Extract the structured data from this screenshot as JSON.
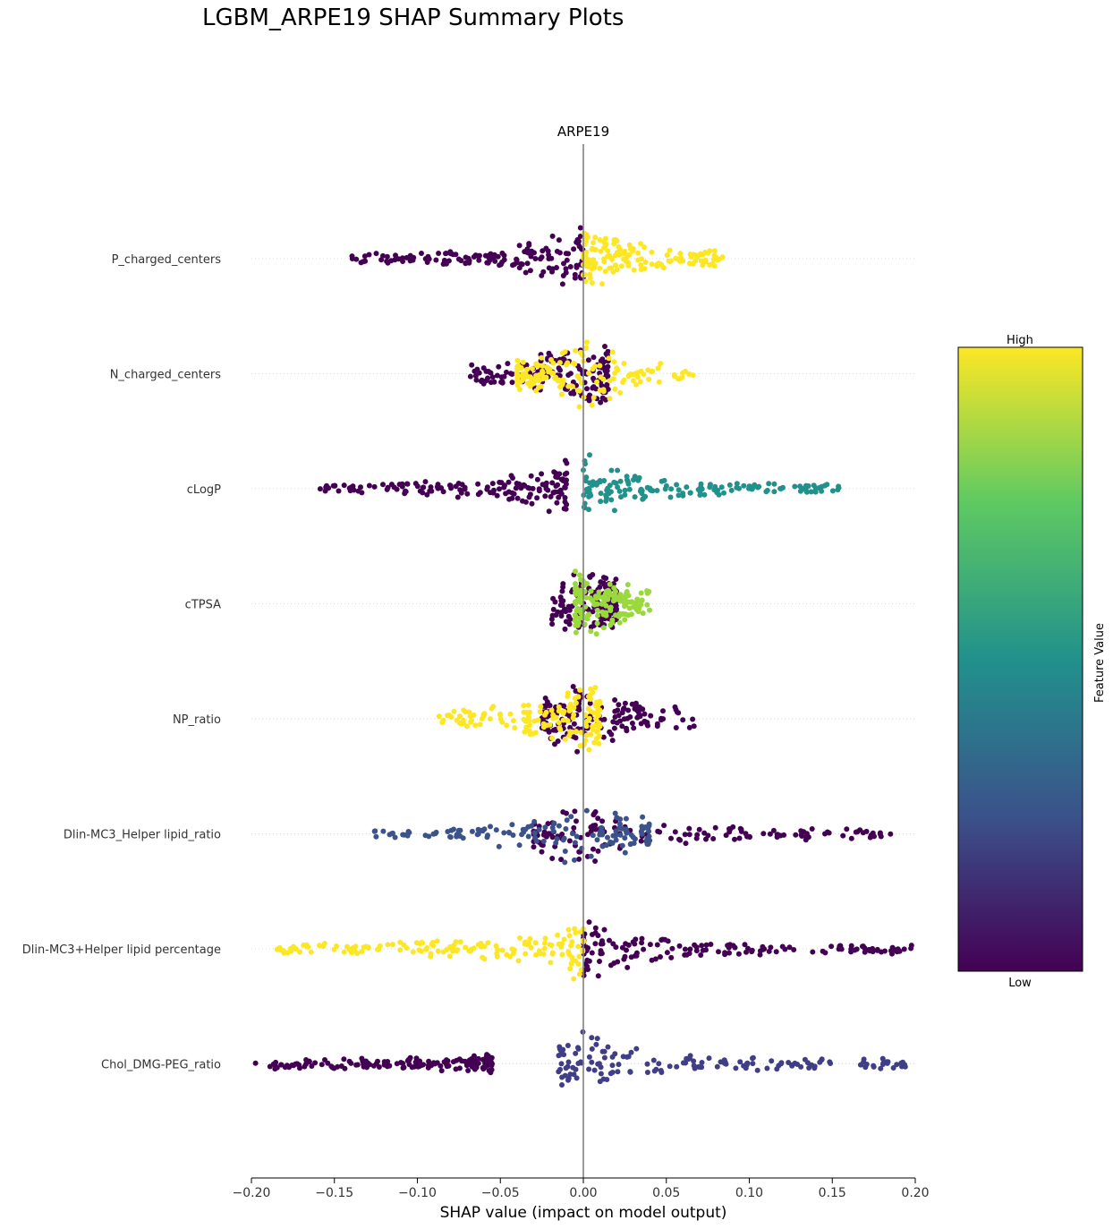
{
  "figure": {
    "suptitle": "LGBM_ARPE19 SHAP Summary Plots",
    "subplot_title": "ARPE19"
  },
  "colorbar": {
    "high_label": "High",
    "low_label": "Low",
    "axis_label": "Feature Value",
    "colormap": "viridis",
    "colors": [
      "#440154",
      "#3b528b",
      "#21918c",
      "#5ec962",
      "#fde725"
    ]
  },
  "chart_data": {
    "type": "scatter",
    "subtype": "shap_beeswarm",
    "title": "ARPE19",
    "xlabel": "SHAP value (impact on model output)",
    "xlim": [
      -0.2,
      0.2
    ],
    "xticks": [
      -0.2,
      -0.15,
      -0.1,
      -0.05,
      0.0,
      0.05,
      0.1,
      0.15,
      0.2
    ],
    "xtick_labels": [
      "−0.20",
      "−0.15",
      "−0.10",
      "−0.05",
      "0.00",
      "0.05",
      "0.10",
      "0.15",
      "0.20"
    ],
    "zero_line": 0.0,
    "features": [
      {
        "name": "P_charged_centers",
        "low_range": [
          -0.14,
          0.0
        ],
        "high_range": [
          0.0,
          0.086
        ],
        "low_color": "#440154",
        "high_color": "#fde725"
      },
      {
        "name": "N_charged_centers",
        "low_range": [
          -0.068,
          0.015
        ],
        "high_range": [
          -0.04,
          0.067
        ],
        "low_color": "#440154",
        "high_color": "#fde725"
      },
      {
        "name": "cLogP",
        "low_range": [
          -0.16,
          -0.01
        ],
        "high_range": [
          0.0,
          0.155
        ],
        "low_color": "#440154",
        "high_color": "#21918c"
      },
      {
        "name": "cTPSA",
        "low_range": [
          -0.02,
          0.02
        ],
        "high_range": [
          -0.005,
          0.04
        ],
        "low_color": "#440154",
        "high_color": "#9ad93c"
      },
      {
        "name": "NP_ratio",
        "low_range": [
          -0.025,
          0.067
        ],
        "high_range": [
          -0.088,
          0.01
        ],
        "low_color": "#440154",
        "high_color": "#fde725"
      },
      {
        "name": "Dlin-MC3_Helper lipid_ratio",
        "low_range": [
          -0.03,
          0.188
        ],
        "high_range": [
          -0.128,
          0.04
        ],
        "low_color": "#440154",
        "high_color": "#3b528b"
      },
      {
        "name": "Dlin-MC3+Helper lipid percentage",
        "low_range": [
          0.0,
          0.2
        ],
        "high_range": [
          -0.185,
          0.0
        ],
        "low_color": "#440154",
        "high_color": "#fde725"
      },
      {
        "name": "Chol_DMG-PEG_ratio",
        "low_range": [
          -0.2,
          -0.055
        ],
        "high_range": [
          -0.015,
          0.2
        ],
        "low_color": "#440154",
        "high_color": "#3f3e87"
      }
    ]
  }
}
